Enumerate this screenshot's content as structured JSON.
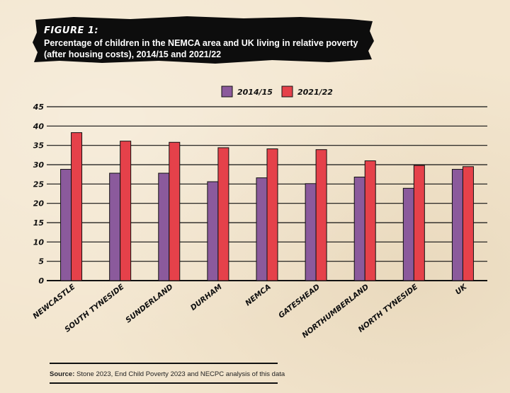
{
  "figure": {
    "label": "FIGURE 1:",
    "title_line1": "Percentage of children in the NEMCA area and UK living in relative poverty",
    "title_line2": "(after housing costs), 2014/15 and 2021/22"
  },
  "source": {
    "label": "Source:",
    "text": " Stone 2023, End Child Poverty 2023 and NECPC analysis of this data"
  },
  "colors": {
    "series_2014": "#8b5a9c",
    "series_2021": "#e5414a",
    "axis": "#111111",
    "banner": "#0d0d0d"
  },
  "chart_data": {
    "type": "bar",
    "categories": [
      "NEWCASTLE",
      "SOUTH TYNESIDE",
      "SUNDERLAND",
      "DURHAM",
      "NEMCA",
      "GATESHEAD",
      "NORTHUMBERLAND",
      "NORTH TYNESIDE",
      "UK"
    ],
    "series": [
      {
        "name": "2014/15",
        "values": [
          28.8,
          27.8,
          27.8,
          25.6,
          26.6,
          25.1,
          26.8,
          23.9,
          28.8
        ]
      },
      {
        "name": "2021/22",
        "values": [
          38.3,
          36.1,
          35.8,
          34.4,
          34.1,
          33.9,
          31.0,
          29.8,
          29.5
        ]
      }
    ],
    "ylim": [
      0,
      45
    ],
    "yticks": [
      "0",
      "5",
      "10",
      "15",
      "20",
      "25",
      "30",
      "35",
      "40",
      "45"
    ],
    "grid": true,
    "legend_position": "top-center"
  }
}
